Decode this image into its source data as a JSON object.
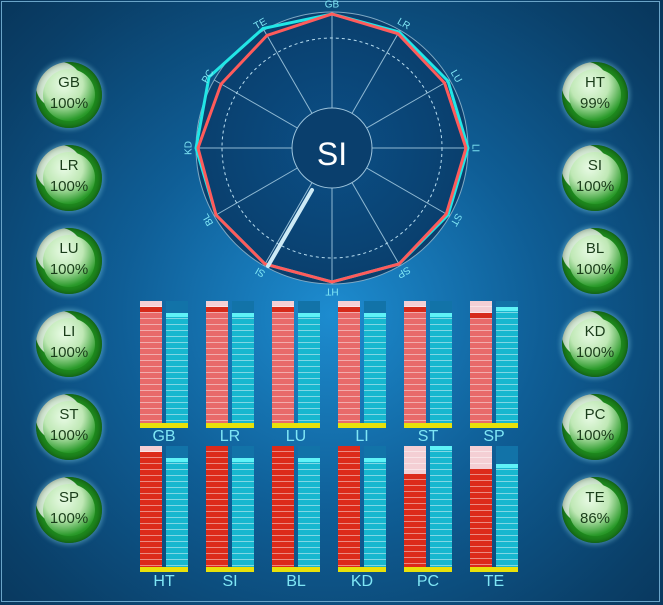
{
  "center_label": "SI",
  "radar_axes": [
    "GB",
    "LR",
    "LU",
    "LI",
    "ST",
    "SP",
    "HT",
    "SI",
    "BL",
    "KD",
    "PC",
    "TE"
  ],
  "left_badges": [
    {
      "code": "GB",
      "pct": "100%"
    },
    {
      "code": "LR",
      "pct": "100%"
    },
    {
      "code": "LU",
      "pct": "100%"
    },
    {
      "code": "LI",
      "pct": "100%"
    },
    {
      "code": "ST",
      "pct": "100%"
    },
    {
      "code": "SP",
      "pct": "100%"
    }
  ],
  "right_badges": [
    {
      "code": "HT",
      "pct": "99%"
    },
    {
      "code": "SI",
      "pct": "100%"
    },
    {
      "code": "BL",
      "pct": "100%"
    },
    {
      "code": "KD",
      "pct": "100%"
    },
    {
      "code": "PC",
      "pct": "100%"
    },
    {
      "code": "TE",
      "pct": "86%"
    }
  ],
  "bar_groups_top": [
    {
      "label": "GB",
      "left_level": 0.95,
      "right_level": 0.9
    },
    {
      "label": "LR",
      "left_level": 0.95,
      "right_level": 0.9
    },
    {
      "label": "LU",
      "left_level": 0.95,
      "right_level": 0.9
    },
    {
      "label": "LI",
      "left_level": 0.95,
      "right_level": 0.9
    },
    {
      "label": "ST",
      "left_level": 0.95,
      "right_level": 0.9
    },
    {
      "label": "SP",
      "left_level": 0.9,
      "right_level": 0.95
    }
  ],
  "bar_groups_bottom": [
    {
      "label": "HT",
      "left_level": 0.95,
      "right_level": 0.9
    },
    {
      "label": "SI",
      "left_level": 1.0,
      "right_level": 0.9
    },
    {
      "label": "BL",
      "left_level": 1.0,
      "right_level": 0.9
    },
    {
      "label": "KD",
      "left_level": 1.0,
      "right_level": 0.9
    },
    {
      "label": "PC",
      "left_level": 0.77,
      "right_level": 1.0
    },
    {
      "label": "TE",
      "left_level": 0.81,
      "right_level": 0.85
    }
  ],
  "colors": {
    "series_a": "#ff5b5b",
    "series_b": "#22e6e6",
    "accent_bar": "#e8e10a"
  }
}
